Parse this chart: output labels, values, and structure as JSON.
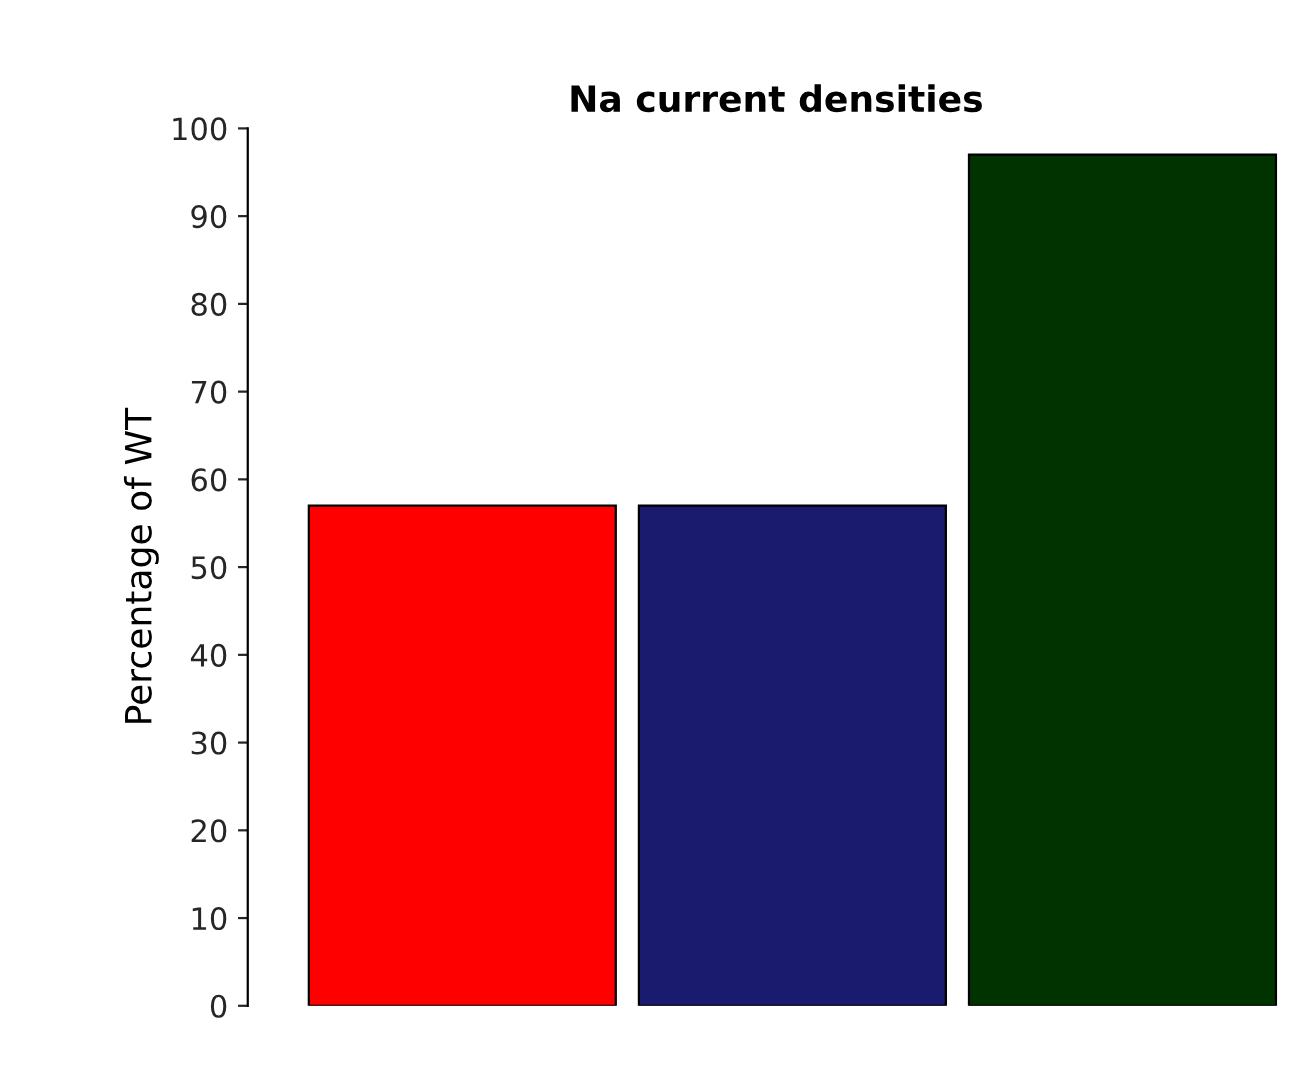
{
  "chart_data": {
    "type": "bar",
    "title": "Na current densities",
    "ylabel": "Percentage of WT",
    "categories": [
      null,
      null,
      null
    ],
    "values": [
      57,
      57,
      97
    ],
    "colors": [
      "#ff0000",
      "#1a1a6e",
      "#003300"
    ],
    "ylim": [
      0,
      100
    ],
    "yticks": [
      0,
      10,
      20,
      30,
      40,
      50,
      60,
      70,
      80,
      90,
      100
    ],
    "grid": false,
    "legend": false
  }
}
